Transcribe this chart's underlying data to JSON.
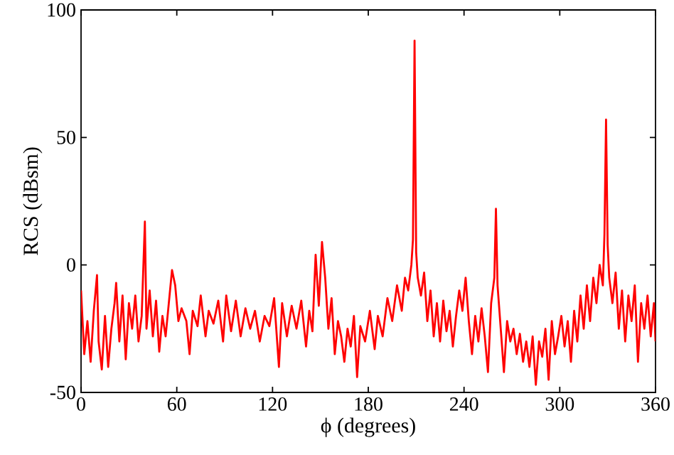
{
  "chart_data": {
    "type": "line",
    "xlabel": "ϕ (degrees)",
    "ylabel": "RCS (dBsm)",
    "xlim": [
      0,
      360
    ],
    "ylim": [
      -50,
      100
    ],
    "xticks": [
      0,
      60,
      120,
      180,
      240,
      300,
      360
    ],
    "yticks": [
      -50,
      0,
      50,
      100
    ],
    "grid": false,
    "marker": "none",
    "line_style": "solid",
    "series": [
      {
        "color": "#ff0000",
        "x": [
          0,
          2,
          4,
          6,
          8,
          10,
          11,
          13,
          15,
          17,
          19,
          21,
          22,
          24,
          26,
          28,
          30,
          32,
          34,
          36,
          38,
          40,
          41,
          43,
          45,
          47,
          49,
          51,
          53,
          55,
          57,
          59,
          61,
          63,
          66,
          68,
          70,
          73,
          75,
          78,
          80,
          83,
          86,
          89,
          91,
          94,
          97,
          100,
          103,
          106,
          109,
          112,
          115,
          118,
          121,
          124,
          126,
          129,
          132,
          135,
          138,
          141,
          143,
          145,
          147,
          149,
          151,
          153,
          155,
          157,
          159,
          161,
          163,
          165,
          167,
          169,
          171,
          173,
          175,
          178,
          181,
          184,
          186,
          189,
          192,
          195,
          198,
          201,
          203,
          205,
          207,
          208,
          209,
          210,
          211,
          213,
          215,
          217,
          219,
          221,
          223,
          225,
          227,
          229,
          231,
          233,
          235,
          237,
          239,
          241,
          243,
          245,
          247,
          249,
          251,
          253,
          255,
          257,
          259,
          260,
          261,
          263,
          265,
          267,
          269,
          271,
          273,
          275,
          277,
          279,
          281,
          283,
          285,
          287,
          289,
          291,
          293,
          295,
          297,
          299,
          301,
          303,
          305,
          307,
          309,
          311,
          313,
          315,
          317,
          319,
          321,
          323,
          325,
          327,
          328,
          329,
          330,
          331,
          333,
          335,
          337,
          339,
          341,
          343,
          345,
          347,
          349,
          351,
          353,
          355,
          357,
          359,
          360
        ],
        "values": [
          -10,
          -35,
          -22,
          -38,
          -18,
          -4,
          -30,
          -41,
          -20,
          -40,
          -25,
          -15,
          -7,
          -30,
          -12,
          -37,
          -15,
          -25,
          -12,
          -30,
          -20,
          17,
          -25,
          -10,
          -28,
          -14,
          -34,
          -20,
          -28,
          -15,
          -2,
          -8,
          -22,
          -17,
          -22,
          -35,
          -18,
          -24,
          -12,
          -28,
          -18,
          -23,
          -14,
          -30,
          -12,
          -26,
          -14,
          -28,
          -17,
          -25,
          -18,
          -30,
          -20,
          -24,
          -13,
          -40,
          -15,
          -28,
          -16,
          -25,
          -14,
          -32,
          -18,
          -26,
          4,
          -16,
          9,
          -5,
          -25,
          -13,
          -35,
          -22,
          -28,
          -38,
          -25,
          -32,
          -20,
          -44,
          -24,
          -30,
          -18,
          -33,
          -20,
          -28,
          -13,
          -22,
          -8,
          -18,
          -5,
          -10,
          0,
          10,
          88,
          5,
          -5,
          -12,
          -3,
          -22,
          -10,
          -28,
          -15,
          -30,
          -14,
          -26,
          -18,
          -32,
          -20,
          -10,
          -18,
          -5,
          -22,
          -35,
          -20,
          -30,
          -17,
          -28,
          -42,
          -15,
          -5,
          22,
          -8,
          -25,
          -42,
          -22,
          -30,
          -25,
          -35,
          -27,
          -38,
          -30,
          -40,
          -28,
          -47,
          -30,
          -36,
          -25,
          -45,
          -22,
          -35,
          -28,
          -20,
          -32,
          -22,
          -38,
          -18,
          -30,
          -12,
          -25,
          -8,
          -22,
          -5,
          -15,
          0,
          -8,
          12,
          57,
          8,
          -5,
          -15,
          -3,
          -25,
          -10,
          -30,
          -12,
          -22,
          -8,
          -38,
          -15,
          -25,
          -12,
          -28,
          -15,
          -30
        ]
      }
    ]
  }
}
